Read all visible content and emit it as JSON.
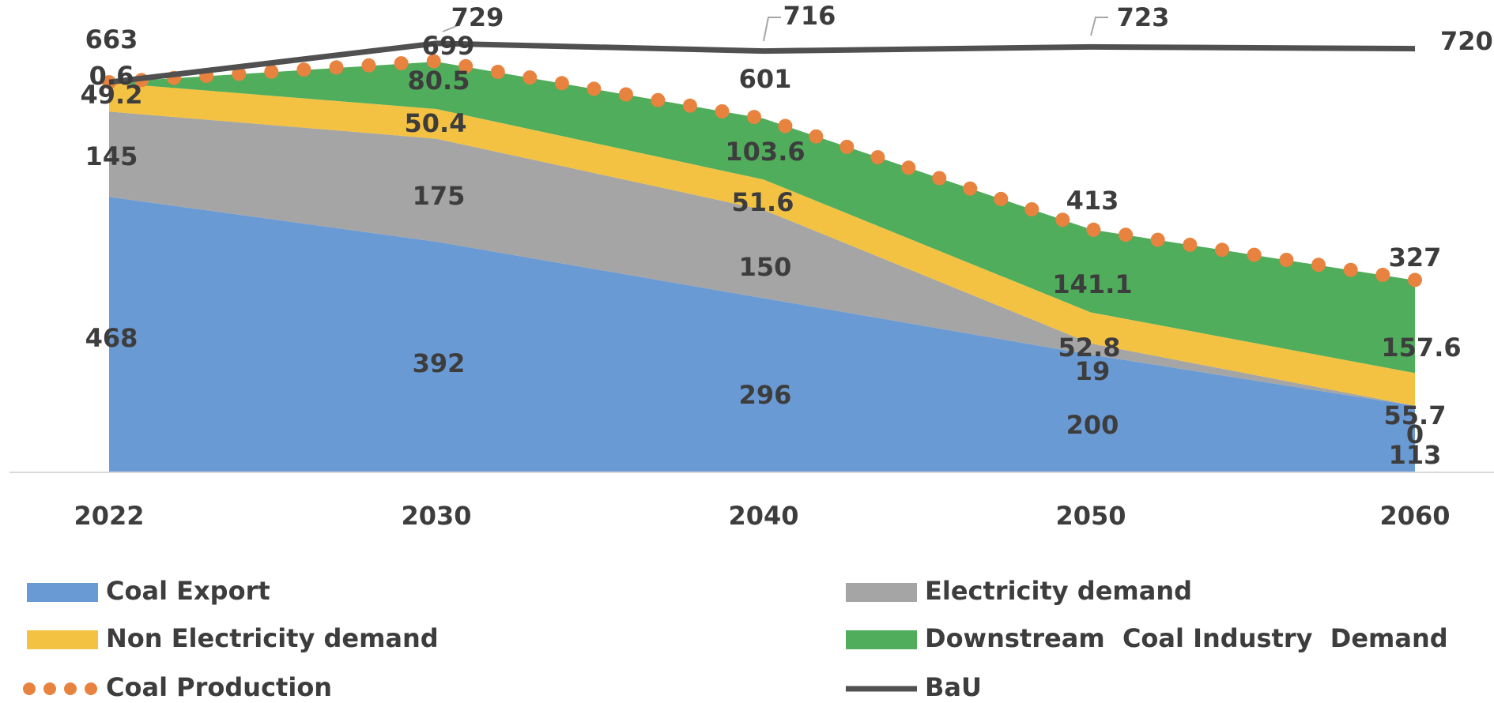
{
  "chart_data": {
    "type": "area",
    "title": "",
    "xlabel": "",
    "ylabel": "",
    "categories": [
      "2022",
      "2030",
      "2040",
      "2050",
      "2060"
    ],
    "ylim": [
      0,
      800
    ],
    "grid": false,
    "legend_position": "bottom",
    "stacked_series": [
      {
        "name": "Coal Export",
        "color": "#6a9ad4",
        "values": [
          468,
          392,
          296,
          200,
          113
        ]
      },
      {
        "name": "Electricity demand",
        "color": "#a5a5a5",
        "values": [
          145,
          175,
          150,
          19,
          0
        ]
      },
      {
        "name": "Non Electricity demand",
        "color": "#f4c242",
        "values": [
          49.2,
          50.4,
          51.6,
          52.8,
          55.7
        ]
      },
      {
        "name": "Downstream  Coal Industry  Demand",
        "color": "#4fad5b",
        "values": [
          0.6,
          80.5,
          103.6,
          141.1,
          157.6
        ]
      }
    ],
    "line_series": [
      {
        "name": "Coal Production",
        "color": "#e8833f",
        "style": "dotted",
        "values": [
          663,
          699,
          601,
          413,
          327
        ]
      },
      {
        "name": "BaU",
        "color": "#505050",
        "style": "solid",
        "values": [
          663,
          729,
          716,
          723,
          720
        ]
      }
    ],
    "data_labels": {
      "Coal Export": [
        "468",
        "392",
        "296",
        "200",
        "113"
      ],
      "Electricity demand": [
        "145",
        "175",
        "150",
        "19",
        "0"
      ],
      "Non Electricity demand": [
        "49.2",
        "50.4",
        "51.6",
        "52.8",
        "55.7"
      ],
      "Downstream  Coal Industry  Demand": [
        "0.6",
        "80.5",
        "103.6",
        "141.1",
        "157.6"
      ],
      "Coal Production": [
        "663",
        "699",
        "601",
        "413",
        "327"
      ],
      "BaU": [
        "",
        "729",
        "716",
        "723",
        "720"
      ]
    },
    "legend": [
      {
        "name": "Coal Export",
        "marker": "box",
        "color": "#6a9ad4"
      },
      {
        "name": "Electricity demand",
        "marker": "box",
        "color": "#a5a5a5"
      },
      {
        "name": "Non Electricity demand",
        "marker": "box",
        "color": "#f4c242"
      },
      {
        "name": "Downstream  Coal Industry  Demand",
        "marker": "box",
        "color": "#4fad5b"
      },
      {
        "name": "Coal Production",
        "marker": "dots",
        "color": "#e8833f"
      },
      {
        "name": "BaU",
        "marker": "line",
        "color": "#505050"
      }
    ]
  }
}
